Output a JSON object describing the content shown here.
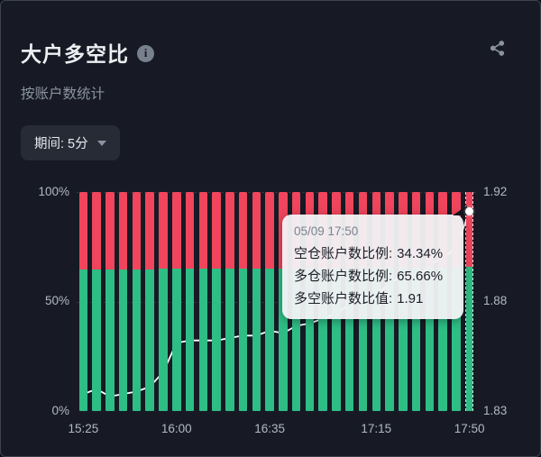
{
  "header": {
    "title": "大户多空比",
    "subtitle": "按账户数统计",
    "info_glyph": "i"
  },
  "controls": {
    "period_label": "期间: 5分"
  },
  "tooltip": {
    "time": "05/09 17:50",
    "rows": [
      {
        "label": "空仓账户数比例:",
        "value": "34.34%"
      },
      {
        "label": "多仓账户数比例:",
        "value": "65.66%"
      },
      {
        "label": "多空账户数比值:",
        "value": "1.91"
      }
    ]
  },
  "colors": {
    "background": "#171A24",
    "card_border": "#3E4350",
    "short_red": "#F0455C",
    "long_green": "#2EBD85",
    "ratio_line": "#FFFFFF",
    "axis_text": "#B2B8C3",
    "title_text": "#EDEFF2",
    "muted_text": "#8A93A1",
    "pill_bg": "#262B36",
    "tooltip_text": "#1B1E26",
    "tooltip_muted": "#7A828F"
  },
  "chart_data": {
    "type": "bar",
    "subtype": "stacked-bars-with-line-overlay",
    "title": "大户多空比 (按账户数统计)",
    "period": "5分",
    "bar_count": 30,
    "selected_index": 29,
    "x_axis": {
      "ticks": [
        {
          "label": "15:25",
          "index": 0
        },
        {
          "label": "16:00",
          "index": 7
        },
        {
          "label": "16:35",
          "index": 14
        },
        {
          "label": "17:15",
          "index": 22
        },
        {
          "label": "17:50",
          "index": 29
        }
      ]
    },
    "left_axis": {
      "ticks": [
        "100%",
        "50%",
        "0%"
      ],
      "min": 0,
      "max": 100,
      "unit": "%"
    },
    "right_axis": {
      "ticks": [
        "1.92",
        "1.88",
        "1.83"
      ],
      "min": 1.83,
      "max": 1.92
    },
    "grid": "dashed horizontal at 50%",
    "series": [
      {
        "name": "多仓账户数比例",
        "type": "bar-segment-bottom",
        "color": "#2EBD85",
        "unit": "%",
        "values": [
          64.75,
          64.78,
          64.74,
          64.75,
          64.76,
          64.79,
          64.86,
          65.01,
          65.02,
          65.02,
          65.02,
          65.03,
          65.05,
          65.05,
          65.07,
          65.06,
          65.1,
          65.11,
          65.13,
          65.16,
          65.2,
          65.24,
          65.25,
          65.3,
          65.35,
          65.32,
          65.4,
          65.43,
          65.48,
          65.66
        ]
      },
      {
        "name": "空仓账户数比例",
        "type": "bar-segment-top",
        "color": "#F0455C",
        "unit": "%",
        "values": [
          35.25,
          35.22,
          35.26,
          35.25,
          35.24,
          35.21,
          35.14,
          34.99,
          34.98,
          34.98,
          34.98,
          34.97,
          34.95,
          34.95,
          34.93,
          34.94,
          34.9,
          34.89,
          34.87,
          34.84,
          34.8,
          34.76,
          34.75,
          34.7,
          34.65,
          34.68,
          34.6,
          34.57,
          34.52,
          34.34
        ]
      },
      {
        "name": "多空账户数比值",
        "type": "line",
        "color": "#FFFFFF",
        "axis": "right",
        "values": [
          1.837,
          1.839,
          1.836,
          1.837,
          1.838,
          1.84,
          1.846,
          1.858,
          1.859,
          1.859,
          1.859,
          1.86,
          1.861,
          1.861,
          1.863,
          1.862,
          1.865,
          1.866,
          1.868,
          1.87,
          1.874,
          1.877,
          1.878,
          1.882,
          1.886,
          1.884,
          1.89,
          1.893,
          1.897,
          1.912
        ]
      }
    ]
  }
}
